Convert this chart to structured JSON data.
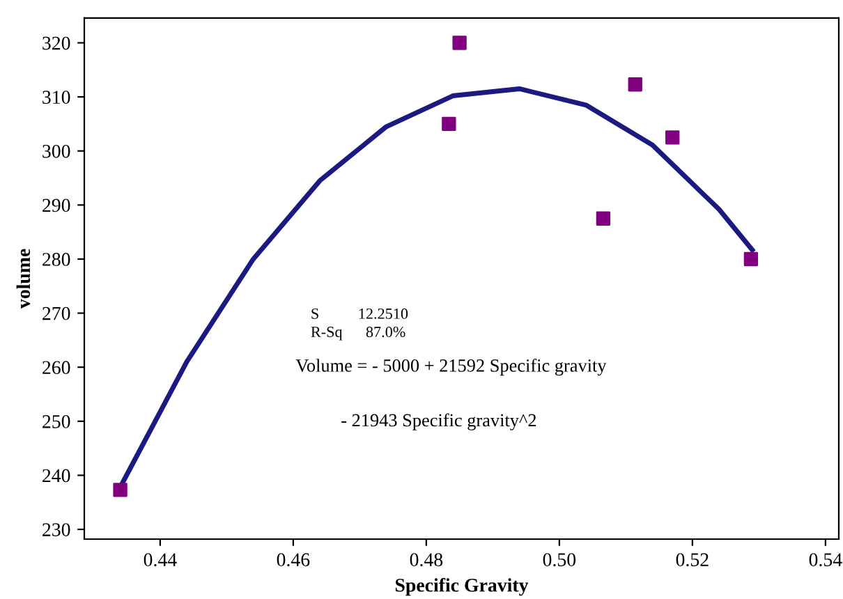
{
  "chart_data": {
    "type": "scatter",
    "xlabel": "Specific Gravity",
    "ylabel": "volume",
    "xlim": [
      0.4286,
      0.542
    ],
    "ylim": [
      228.2,
      324.6
    ],
    "xticks": [
      {
        "value": 0.44,
        "label": "0.44"
      },
      {
        "value": 0.46,
        "label": "0.46"
      },
      {
        "value": 0.48,
        "label": "0.48"
      },
      {
        "value": 0.5,
        "label": "0.50"
      },
      {
        "value": 0.52,
        "label": "0.52"
      },
      {
        "value": 0.54,
        "label": "0.54"
      }
    ],
    "yticks": [
      230,
      240,
      250,
      260,
      270,
      280,
      290,
      300,
      310,
      320
    ],
    "grid": false,
    "legend": false,
    "series": [
      {
        "color": "#800080",
        "marker": "square",
        "x": [
          0.434,
          0.485,
          0.4834,
          0.5066,
          0.5114,
          0.517,
          0.5288
        ],
        "values": [
          237.3,
          320,
          305,
          287.5,
          312.3,
          302.5,
          280
        ]
      },
      {
        "type": "line",
        "color": "#1a1a80",
        "marker": "none",
        "line_style": "solid",
        "x": [
          0.434,
          0.444,
          0.454,
          0.464,
          0.474,
          0.484,
          0.494,
          0.504,
          0.514,
          0.524,
          0.529
        ],
        "values": [
          237.8,
          261.0,
          280.0,
          294.5,
          304.5,
          310.2,
          311.5,
          308.5,
          301.1,
          289.2,
          281.7
        ]
      }
    ],
    "annotations": [
      "S          12.2510",
      "R-Sq      87.0%",
      "Volume = - 5000 + 21592 Specific gravity",
      "- 21943 Specific gravity^2"
    ]
  }
}
